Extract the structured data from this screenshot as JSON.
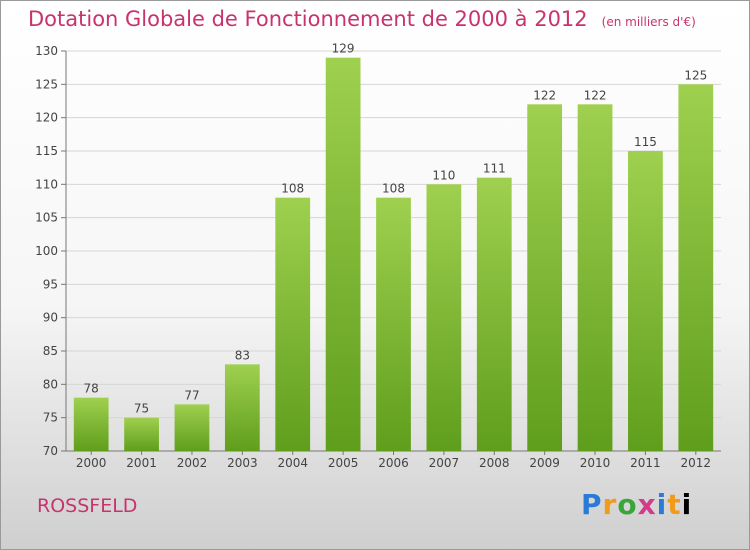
{
  "title": "Dotation Globale de Fonctionnement de 2000 à 2012",
  "unit_note": "(en milliers d'€)",
  "commune": "ROSSFELD",
  "logo": {
    "letters": [
      "P",
      "r",
      "o",
      "x",
      "i",
      "t",
      "i"
    ]
  },
  "colors": {
    "title": "#c8336e",
    "bar_light": "#9fd04f",
    "bar_dark": "#5f9e1c"
  },
  "chart_data": {
    "type": "bar",
    "title": "Dotation Globale de Fonctionnement de 2000 à 2012",
    "subtitle": "(en milliers d'€)",
    "categories": [
      "2000",
      "2001",
      "2002",
      "2003",
      "2004",
      "2005",
      "2006",
      "2007",
      "2008",
      "2009",
      "2010",
      "2011",
      "2012"
    ],
    "values": [
      78,
      75,
      77,
      83,
      108,
      129,
      108,
      110,
      111,
      122,
      122,
      115,
      125
    ],
    "ylim": [
      70,
      130
    ],
    "yticks": [
      70,
      75,
      80,
      85,
      90,
      95,
      100,
      105,
      110,
      115,
      120,
      125,
      130
    ],
    "grid": true,
    "xlabel": "",
    "ylabel": ""
  }
}
